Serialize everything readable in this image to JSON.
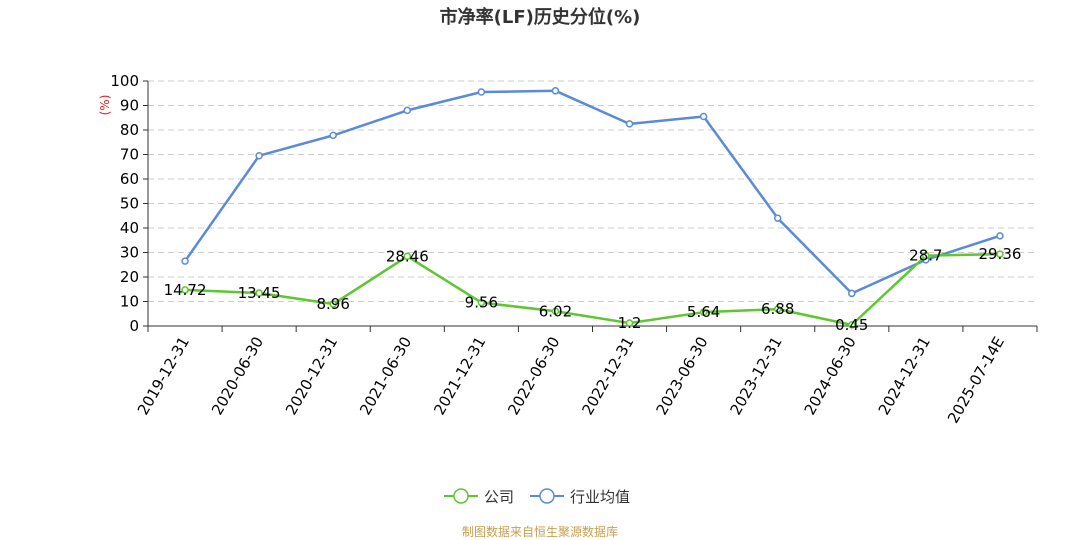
{
  "chart_data": {
    "type": "line",
    "title": "市净率(LF)历史分位(%)",
    "ylabel": "(%)",
    "ylim": [
      0,
      100
    ],
    "yticks": [
      0,
      10,
      20,
      30,
      40,
      50,
      60,
      70,
      80,
      90,
      100
    ],
    "categories": [
      "2019-12-31",
      "2020-06-30",
      "2020-12-31",
      "2021-06-30",
      "2021-12-31",
      "2022-06-30",
      "2022-12-31",
      "2023-06-30",
      "2023-12-31",
      "2024-06-30",
      "2024-12-31",
      "2025-07-14E"
    ],
    "series": [
      {
        "name": "公司",
        "color": "#5cc72e",
        "values": [
          14.72,
          13.45,
          8.96,
          28.46,
          9.56,
          6.02,
          1.2,
          5.64,
          6.88,
          0.45,
          28.7,
          29.36
        ],
        "labels": [
          "14.72",
          "13.45",
          "8.96",
          "28.46",
          "9.56",
          "6.02",
          "1.2",
          "5.64",
          "6.88",
          "0.45",
          "28.7",
          "29.36"
        ]
      },
      {
        "name": "行业均值",
        "color": "#5b8ad8",
        "values": [
          26.5,
          69.5,
          77.8,
          88.0,
          95.5,
          96.0,
          82.5,
          85.5,
          44.0,
          13.3,
          27.0,
          36.8
        ]
      }
    ],
    "grid": true,
    "legend": "bottom-center"
  },
  "source": "制图数据来自恒生聚源数据库"
}
